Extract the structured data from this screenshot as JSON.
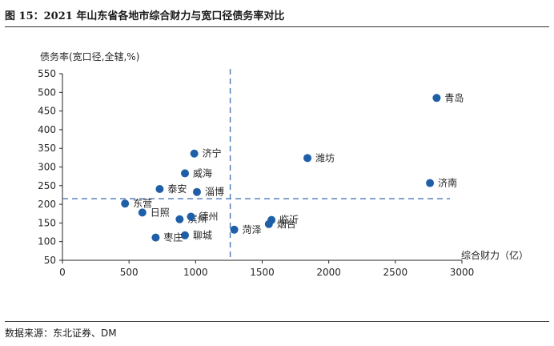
{
  "header": {
    "title": "图 15：2021 年山东省各地市综合财力与宽口径债务率对比"
  },
  "footer": {
    "source": "数据来源：东北证券、DM"
  },
  "chart_data": {
    "type": "scatter",
    "xlabel": "综合财力（亿）",
    "ylabel": "债务率(宽口径,全辖,%)",
    "xlim": [
      0,
      3000
    ],
    "ylim": [
      50,
      550
    ],
    "xticks": [
      0,
      500,
      1000,
      1500,
      2000,
      2500,
      3000
    ],
    "yticks": [
      50,
      100,
      150,
      200,
      250,
      300,
      350,
      400,
      450,
      500,
      550
    ],
    "grid": false,
    "point_color": "#1f5fa8",
    "reference_line_color": "#4a79b5",
    "reference_lines": {
      "x": 1260,
      "y": 215
    },
    "points": [
      {
        "label": "青岛",
        "x": 2810,
        "y": 485
      },
      {
        "label": "济南",
        "x": 2760,
        "y": 257
      },
      {
        "label": "潍坊",
        "x": 1840,
        "y": 324
      },
      {
        "label": "济宁",
        "x": 990,
        "y": 336
      },
      {
        "label": "威海",
        "x": 920,
        "y": 283
      },
      {
        "label": "泰安",
        "x": 730,
        "y": 241
      },
      {
        "label": "淄博",
        "x": 1010,
        "y": 233
      },
      {
        "label": "东营",
        "x": 470,
        "y": 202
      },
      {
        "label": "日照",
        "x": 600,
        "y": 178
      },
      {
        "label": "滨州",
        "x": 880,
        "y": 160
      },
      {
        "label": "德州",
        "x": 965,
        "y": 167
      },
      {
        "label": "临沂",
        "x": 1570,
        "y": 158
      },
      {
        "label": "烟台",
        "x": 1550,
        "y": 147
      },
      {
        "label": "菏泽",
        "x": 1290,
        "y": 132
      },
      {
        "label": "聊城",
        "x": 920,
        "y": 117
      },
      {
        "label": "枣庄",
        "x": 700,
        "y": 111
      }
    ]
  }
}
